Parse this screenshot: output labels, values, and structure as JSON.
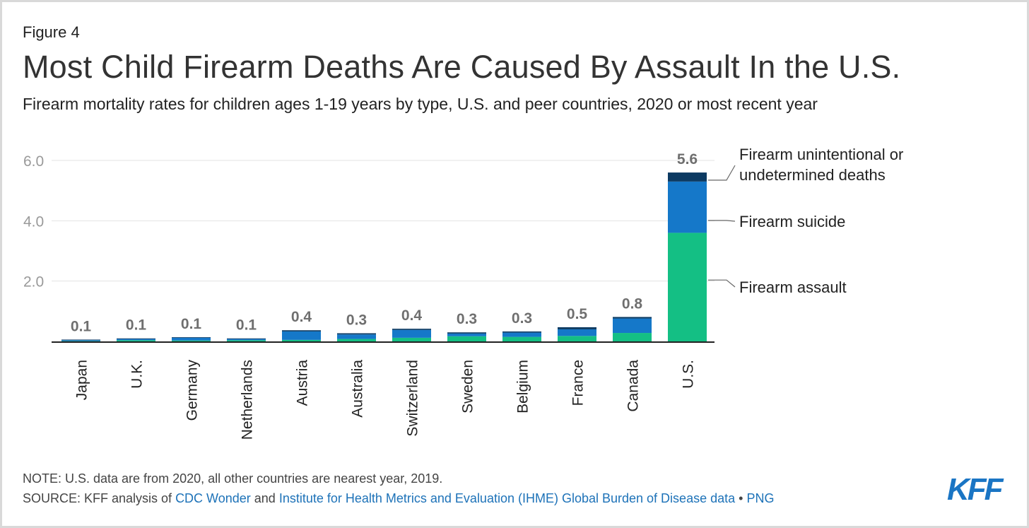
{
  "figure_label": "Figure 4",
  "title": "Most Child Firearm Deaths Are Caused By Assault In the U.S.",
  "subtitle": "Firearm mortality rates for children ages 1-19 years by type, U.S. and peer countries, 2020 or most recent year",
  "note": "NOTE: U.S. data are from 2020, all other countries are nearest year, 2019.",
  "source": {
    "prefix": "SOURCE: KFF analysis of ",
    "link1": "CDC Wonder",
    "and": " and ",
    "link2": "Institute for Health Metrics and Evaluation (IHME) Global Burden of Disease data",
    "sep": " • ",
    "link3": "PNG"
  },
  "logo": "KFF",
  "colors": {
    "assault": "#14bf84",
    "suicide": "#1578c9",
    "unintentional": "#0c3a62",
    "grid": "#e3e3e3",
    "axis": "#222222",
    "tick_label": "#9a9a9a",
    "total_label": "#6f6f6f"
  },
  "chart_data": {
    "type": "bar",
    "stacked": true,
    "categories": [
      "Japan",
      "U.K.",
      "Germany",
      "Netherlands",
      "Austria",
      "Australia",
      "Switzerland",
      "Sweden",
      "Belgium",
      "France",
      "Canada",
      "U.S."
    ],
    "series": [
      {
        "name": "Firearm assault",
        "values": [
          0.01,
          0.04,
          0.03,
          0.04,
          0.05,
          0.08,
          0.12,
          0.17,
          0.15,
          0.18,
          0.28,
          3.6
        ]
      },
      {
        "name": "Firearm suicide",
        "values": [
          0.03,
          0.04,
          0.09,
          0.04,
          0.28,
          0.15,
          0.26,
          0.09,
          0.14,
          0.22,
          0.48,
          1.7
        ]
      },
      {
        "name": "Firearm unintentional or undetermined deaths",
        "values": [
          0.02,
          0.02,
          0.02,
          0.02,
          0.04,
          0.04,
          0.04,
          0.04,
          0.04,
          0.07,
          0.05,
          0.3
        ]
      }
    ],
    "totals": [
      "0.1",
      "0.1",
      "0.1",
      "0.1",
      "0.4",
      "0.3",
      "0.4",
      "0.3",
      "0.3",
      "0.5",
      "0.8",
      "5.6"
    ],
    "y_ticks": [
      "6.0",
      "4.0",
      "2.0"
    ],
    "ylim": [
      0,
      6
    ],
    "grid": true,
    "legend_placement": "right, direct labels"
  }
}
